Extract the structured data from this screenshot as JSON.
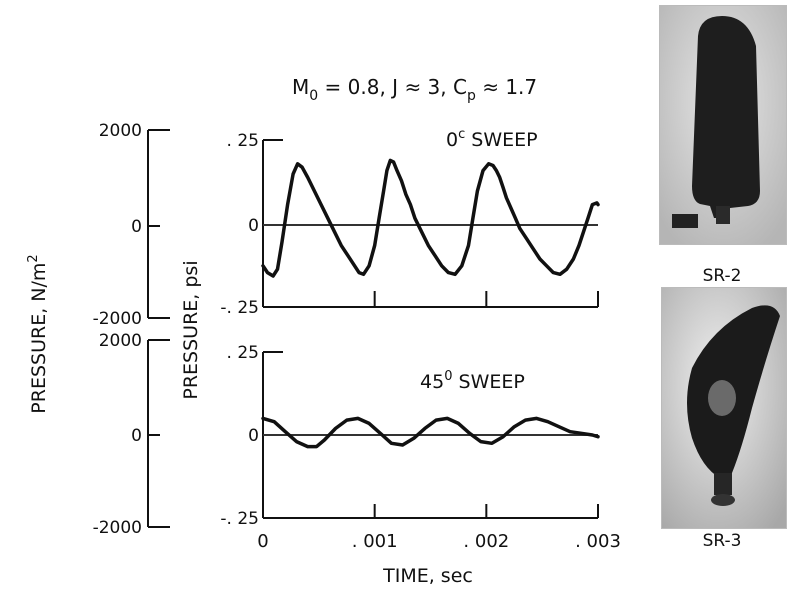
{
  "chart_data": {
    "type": "line",
    "title_parts": [
      "M",
      "0",
      " = 0.8, J ≈ 3, C",
      "p",
      " ≈ 1.7"
    ],
    "xlabel": "TIME, sec",
    "xlim": [
      0,
      0.003
    ],
    "x_ticks": [
      0,
      0.001,
      0.002,
      0.003
    ],
    "x_tick_labels": [
      "0",
      ". 001",
      ". 002",
      ". 003"
    ],
    "ylabel_psi": "PRESSURE, psi",
    "ylabel_si_parts": [
      "PRESSURE, N/m",
      "2"
    ],
    "panels": [
      {
        "name_parts": [
          "0",
          "c",
          " SWEEP"
        ],
        "ylim_psi": [
          -0.25,
          0.25
        ],
        "ytick_labels_psi": [
          ". 25",
          "0",
          "-. 25"
        ],
        "ytick_labels_si": [
          "2000",
          "0",
          "-2000"
        ],
        "series": [
          {
            "x": [
              0,
              4e-05,
              9e-05,
              0.00013,
              0.00017,
              0.00022,
              0.00027,
              0.00031,
              0.00035,
              0.0004,
              0.00046,
              0.00052,
              0.00058,
              0.00064,
              0.0007,
              0.00076,
              0.00082,
              0.00086,
              0.0009,
              0.00095,
              0.001,
              0.00104,
              0.00108,
              0.00111,
              0.00114,
              0.00117,
              0.0012,
              0.00124,
              0.00128,
              0.00132,
              0.00136,
              0.00142,
              0.00148,
              0.00154,
              0.0016,
              0.00166,
              0.00172,
              0.00178,
              0.00184,
              0.00188,
              0.00192,
              0.00197,
              0.00202,
              0.00206,
              0.00209,
              0.00212,
              0.00215,
              0.00218,
              0.00222,
              0.00226,
              0.0023,
              0.00236,
              0.00242,
              0.00248,
              0.00254,
              0.0026,
              0.00266,
              0.00272,
              0.00278,
              0.00283,
              0.00287,
              0.00291,
              0.00295,
              0.00299,
              0.003
            ],
            "y": [
              -0.12,
              -0.14,
              -0.15,
              -0.13,
              -0.05,
              0.06,
              0.15,
              0.18,
              0.17,
              0.14,
              0.1,
              0.06,
              0.02,
              -0.02,
              -0.06,
              -0.09,
              -0.12,
              -0.14,
              -0.145,
              -0.12,
              -0.06,
              0.02,
              0.1,
              0.16,
              0.19,
              0.185,
              0.16,
              0.13,
              0.09,
              0.06,
              0.02,
              -0.02,
              -0.06,
              -0.09,
              -0.12,
              -0.14,
              -0.145,
              -0.12,
              -0.06,
              0.02,
              0.1,
              0.16,
              0.18,
              0.175,
              0.16,
              0.14,
              0.11,
              0.08,
              0.05,
              0.02,
              -0.01,
              -0.04,
              -0.07,
              -0.1,
              -0.12,
              -0.14,
              -0.145,
              -0.13,
              -0.1,
              -0.06,
              -0.02,
              0.02,
              0.06,
              0.065,
              0.06
            ]
          }
        ]
      },
      {
        "name_parts": [
          "45",
          "0",
          " SWEEP"
        ],
        "ylim_psi": [
          -0.25,
          0.25
        ],
        "ytick_labels_psi": [
          ". 25",
          "0",
          "-. 25"
        ],
        "ytick_labels_si": [
          "2000",
          "0",
          "-2000"
        ],
        "series": [
          {
            "x": [
              0,
              0.0001,
              0.0002,
              0.0003,
              0.0004,
              0.00048,
              0.00055,
              0.00065,
              0.00075,
              0.00085,
              0.00095,
              0.00105,
              0.00115,
              0.00125,
              0.00135,
              0.00145,
              0.00155,
              0.00165,
              0.00175,
              0.00185,
              0.00195,
              0.00205,
              0.00215,
              0.00225,
              0.00235,
              0.00245,
              0.00255,
              0.00265,
              0.00275,
              0.00285,
              0.00295,
              0.003
            ],
            "y": [
              0.05,
              0.04,
              0.01,
              -0.02,
              -0.035,
              -0.035,
              -0.015,
              0.02,
              0.045,
              0.05,
              0.035,
              0.005,
              -0.025,
              -0.03,
              -0.01,
              0.02,
              0.045,
              0.05,
              0.035,
              0.005,
              -0.02,
              -0.025,
              -0.005,
              0.025,
              0.045,
              0.05,
              0.04,
              0.025,
              0.01,
              0.005,
              0.0,
              -0.005
            ]
          }
        ]
      }
    ]
  },
  "photos": [
    {
      "label": "SR-2",
      "icon": "propeller-blade-sr2-photo"
    },
    {
      "label": "SR-3",
      "icon": "propeller-blade-sr3-photo"
    }
  ]
}
